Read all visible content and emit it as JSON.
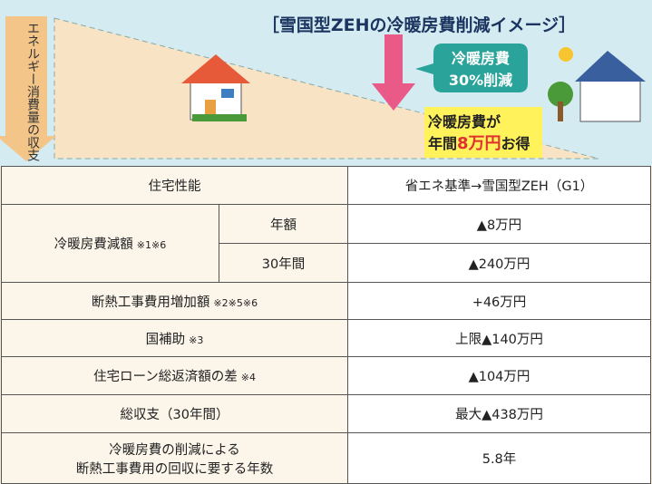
{
  "banner": {
    "axis_label": "エネルギー消費量の収支",
    "title": "［雪国型ZEHの冷暖房費削減イメージ］",
    "bubble": [
      "冷暖房費",
      "30%削減"
    ],
    "savings": {
      "line1": "冷暖房費が",
      "line2_prefix": "年間",
      "line2_highlight": "8万円",
      "line2_suffix": "お得"
    }
  },
  "table": {
    "header": [
      "住宅性能",
      "省エネ基準→雪国型ZEH（G1）"
    ],
    "rows": [
      {
        "label": "冷暖房費減額",
        "note": "※1※6",
        "sub": "年額",
        "value": "▲8万円"
      },
      {
        "sub": "30年間",
        "value": "▲240万円"
      },
      {
        "label": "断熱工事費用増加額",
        "note": "※2※5※6",
        "value": "+46万円"
      },
      {
        "label": "国補助",
        "note": "※3",
        "value": "上限▲140万円"
      },
      {
        "label": "住宅ローン総返済額の差",
        "note": "※4",
        "value": "▲104万円"
      },
      {
        "label": "総収支（30年間）",
        "value": "最大▲438万円"
      },
      {
        "label": [
          "冷暖房費の削減による",
          "断熱工事費用の回収に要する年数"
        ],
        "value": "5.8年"
      }
    ]
  }
}
